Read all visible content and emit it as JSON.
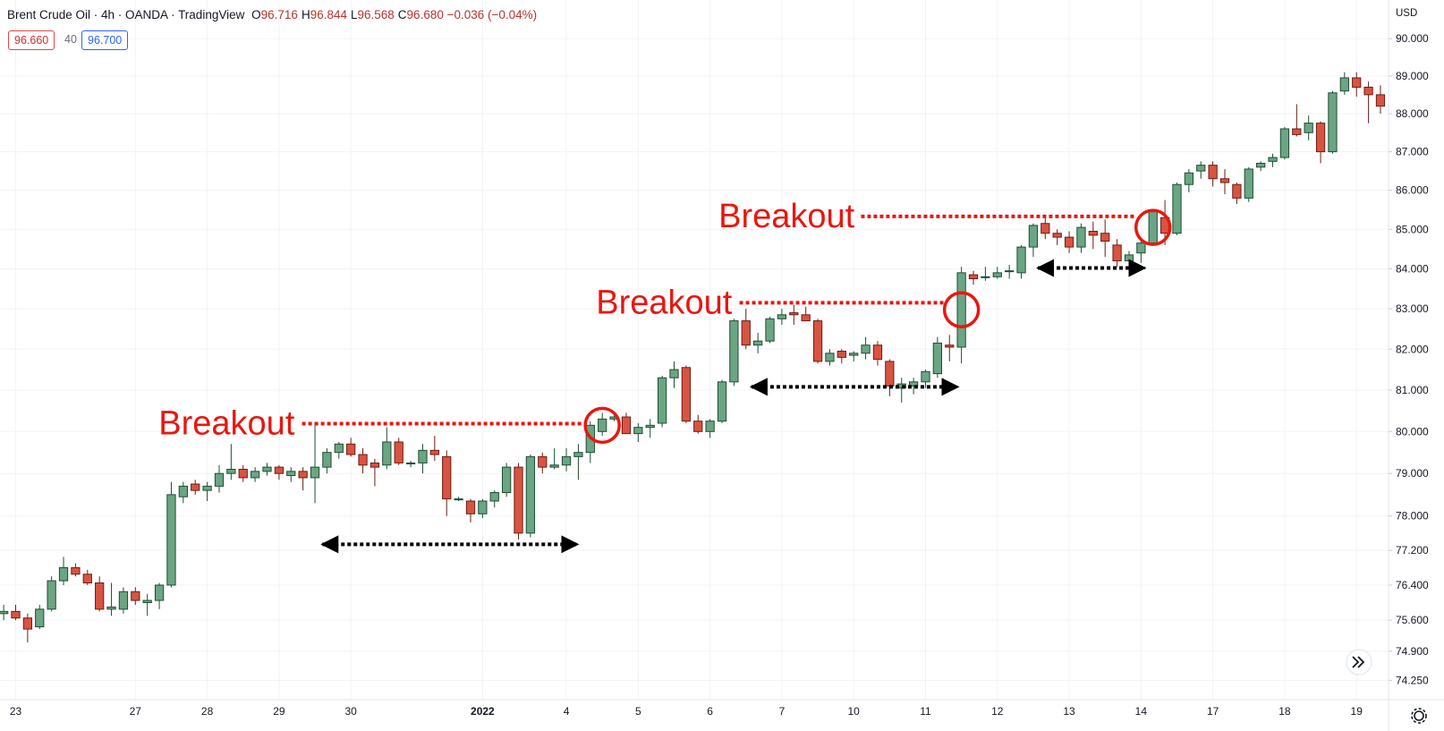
{
  "header": {
    "symbol": "Brent Crude Oil · 4h · OANDA · TradingView",
    "ohlc": [
      {
        "label": "O",
        "value": "96.716"
      },
      {
        "label": "H",
        "value": "96.844"
      },
      {
        "label": "L",
        "value": "96.568"
      },
      {
        "label": "C",
        "value": "96.680"
      }
    ],
    "change": "−0.036 (−0.04%)",
    "bid": "96.660",
    "spread": "40",
    "ask": "96.700"
  },
  "chart_data": {
    "type": "candlestick",
    "currency": "USD",
    "log_scale": true,
    "grid": true,
    "up_color": "#6ba583",
    "down_color": "#d75442",
    "ylim": [
      73.82,
      91.05
    ],
    "yticks": [
      {
        "value": 90,
        "label": "90.000"
      },
      {
        "value": 89,
        "label": "89.000"
      },
      {
        "value": 88,
        "label": "88.000"
      },
      {
        "value": 87,
        "label": "87.000"
      },
      {
        "value": 86,
        "label": "86.000"
      },
      {
        "value": 85,
        "label": "85.000"
      },
      {
        "value": 84,
        "label": "84.000"
      },
      {
        "value": 83,
        "label": "83.000"
      },
      {
        "value": 82,
        "label": "82.000"
      },
      {
        "value": 81,
        "label": "81.000"
      },
      {
        "value": 80,
        "label": "80.000"
      },
      {
        "value": 79,
        "label": "79.000"
      },
      {
        "value": 78,
        "label": "78.000"
      },
      {
        "value": 77.2,
        "label": "77.200"
      },
      {
        "value": 76.4,
        "label": "76.400"
      },
      {
        "value": 75.6,
        "label": "75.600"
      },
      {
        "value": 74.9,
        "label": "74.900"
      },
      {
        "value": 74.25,
        "label": "74.250"
      }
    ],
    "categories": [
      null,
      "23",
      null,
      null,
      null,
      null,
      null,
      null,
      null,
      null,
      null,
      "27",
      null,
      null,
      null,
      null,
      null,
      "28",
      null,
      null,
      null,
      null,
      null,
      "29",
      null,
      null,
      null,
      null,
      null,
      "30",
      null,
      null,
      null,
      null,
      null,
      null,
      null,
      null,
      null,
      null,
      "2022",
      null,
      null,
      null,
      null,
      null,
      null,
      "4",
      null,
      null,
      null,
      null,
      null,
      "5",
      null,
      null,
      null,
      null,
      null,
      "6",
      null,
      null,
      null,
      null,
      null,
      "7",
      null,
      null,
      null,
      null,
      null,
      "10",
      null,
      null,
      null,
      null,
      null,
      "11",
      null,
      null,
      null,
      null,
      null,
      "12",
      null,
      null,
      null,
      null,
      null,
      "13",
      null,
      null,
      null,
      null,
      null,
      "14",
      null,
      null,
      null,
      null,
      null,
      "17",
      null,
      null,
      null,
      null,
      null,
      "18",
      null,
      null,
      null,
      null,
      null,
      "19",
      null,
      null
    ],
    "candles": [
      [
        75.75,
        75.95,
        75.6,
        75.8
      ],
      [
        75.8,
        75.95,
        75.6,
        75.65
      ],
      [
        75.65,
        75.75,
        75.1,
        75.4
      ],
      [
        75.45,
        75.95,
        75.4,
        75.85
      ],
      [
        75.85,
        76.6,
        75.8,
        76.5
      ],
      [
        76.5,
        77.05,
        76.4,
        76.8
      ],
      [
        76.8,
        76.9,
        76.6,
        76.65
      ],
      [
        76.65,
        76.75,
        76.4,
        76.45
      ],
      [
        76.45,
        76.6,
        75.8,
        75.85
      ],
      [
        75.85,
        76.45,
        75.7,
        75.9
      ],
      [
        75.85,
        76.35,
        75.75,
        76.25
      ],
      [
        76.25,
        76.35,
        75.95,
        76.05
      ],
      [
        76.0,
        76.2,
        75.7,
        76.05
      ],
      [
        76.05,
        76.45,
        75.85,
        76.4
      ],
      [
        76.4,
        78.8,
        76.35,
        78.5
      ],
      [
        78.45,
        78.8,
        78.3,
        78.7
      ],
      [
        78.75,
        78.85,
        78.5,
        78.6
      ],
      [
        78.6,
        78.8,
        78.35,
        78.7
      ],
      [
        78.7,
        79.2,
        78.55,
        79.0
      ],
      [
        79.0,
        79.7,
        78.85,
        79.1
      ],
      [
        79.1,
        79.2,
        78.8,
        78.9
      ],
      [
        78.9,
        79.15,
        78.8,
        79.05
      ],
      [
        79.05,
        79.25,
        78.95,
        79.15
      ],
      [
        79.15,
        79.2,
        78.85,
        79.0
      ],
      [
        78.95,
        79.15,
        78.8,
        79.05
      ],
      [
        79.05,
        79.15,
        78.6,
        78.9
      ],
      [
        78.9,
        80.2,
        78.3,
        79.15
      ],
      [
        79.15,
        79.6,
        79.0,
        79.5
      ],
      [
        79.5,
        79.75,
        79.35,
        79.7
      ],
      [
        79.7,
        79.85,
        79.4,
        79.45
      ],
      [
        79.45,
        79.6,
        79.0,
        79.2
      ],
      [
        79.25,
        79.35,
        78.7,
        79.15
      ],
      [
        79.2,
        80.1,
        79.1,
        79.75
      ],
      [
        79.75,
        79.85,
        79.2,
        79.25
      ],
      [
        79.25,
        79.3,
        79.15,
        79.25
      ],
      [
        79.25,
        79.7,
        79.0,
        79.55
      ],
      [
        79.55,
        79.9,
        79.3,
        79.45
      ],
      [
        79.4,
        79.55,
        78.0,
        78.4
      ],
      [
        78.4,
        78.45,
        78.35,
        78.4
      ],
      [
        78.35,
        78.4,
        77.85,
        78.05
      ],
      [
        78.05,
        78.4,
        77.95,
        78.35
      ],
      [
        78.35,
        78.6,
        78.2,
        78.55
      ],
      [
        78.55,
        79.25,
        78.45,
        79.15
      ],
      [
        79.15,
        79.25,
        77.45,
        77.6
      ],
      [
        77.6,
        79.45,
        77.5,
        79.4
      ],
      [
        79.4,
        79.5,
        79.0,
        79.15
      ],
      [
        79.15,
        79.6,
        79.1,
        79.2
      ],
      [
        79.2,
        79.6,
        79.05,
        79.4
      ],
      [
        79.4,
        79.7,
        78.85,
        79.5
      ],
      [
        79.5,
        80.25,
        79.25,
        80.15
      ],
      [
        80.0,
        80.45,
        79.9,
        80.3
      ],
      [
        80.3,
        80.4,
        80.25,
        80.35
      ],
      [
        80.35,
        80.45,
        79.95,
        79.95
      ],
      [
        79.95,
        80.2,
        79.75,
        80.1
      ],
      [
        80.1,
        80.3,
        79.85,
        80.15
      ],
      [
        80.2,
        81.35,
        80.1,
        81.3
      ],
      [
        81.3,
        81.7,
        81.05,
        81.5
      ],
      [
        81.55,
        81.6,
        80.2,
        80.25
      ],
      [
        80.25,
        80.4,
        79.95,
        80.0
      ],
      [
        80.0,
        80.3,
        79.85,
        80.25
      ],
      [
        80.25,
        81.25,
        80.2,
        81.2
      ],
      [
        81.2,
        82.75,
        81.1,
        82.7
      ],
      [
        82.7,
        83.0,
        82.0,
        82.1
      ],
      [
        82.1,
        82.4,
        81.9,
        82.2
      ],
      [
        82.2,
        82.8,
        82.15,
        82.75
      ],
      [
        82.75,
        83.0,
        82.6,
        82.85
      ],
      [
        82.9,
        83.1,
        82.6,
        82.85
      ],
      [
        82.85,
        83.05,
        82.7,
        82.7
      ],
      [
        82.7,
        82.75,
        81.65,
        81.7
      ],
      [
        81.7,
        82.0,
        81.6,
        81.9
      ],
      [
        81.95,
        82.0,
        81.65,
        81.8
      ],
      [
        81.85,
        81.95,
        81.7,
        81.9
      ],
      [
        81.9,
        82.3,
        81.75,
        82.1
      ],
      [
        82.1,
        82.2,
        81.6,
        81.75
      ],
      [
        81.7,
        81.75,
        80.85,
        81.1
      ],
      [
        81.05,
        81.3,
        80.7,
        81.15
      ],
      [
        81.1,
        81.3,
        80.9,
        81.2
      ],
      [
        81.2,
        81.5,
        81.05,
        81.45
      ],
      [
        81.4,
        82.3,
        81.3,
        82.15
      ],
      [
        82.1,
        82.35,
        81.7,
        82.05
      ],
      [
        82.05,
        84.05,
        81.65,
        83.9
      ],
      [
        83.85,
        83.95,
        83.6,
        83.75
      ],
      [
        83.8,
        84.05,
        83.7,
        83.8
      ],
      [
        83.8,
        84.05,
        83.75,
        83.9
      ],
      [
        83.95,
        84.1,
        83.75,
        83.95
      ],
      [
        83.9,
        84.6,
        83.75,
        84.55
      ],
      [
        84.55,
        85.15,
        84.3,
        85.1
      ],
      [
        85.15,
        85.3,
        84.75,
        84.9
      ],
      [
        84.9,
        85.0,
        84.6,
        84.8
      ],
      [
        84.8,
        84.95,
        84.4,
        84.55
      ],
      [
        84.55,
        85.15,
        84.4,
        85.05
      ],
      [
        84.95,
        85.2,
        84.5,
        84.85
      ],
      [
        84.9,
        85.25,
        84.3,
        84.7
      ],
      [
        84.6,
        84.75,
        84.05,
        84.2
      ],
      [
        84.2,
        84.45,
        84.0,
        84.35
      ],
      [
        84.4,
        84.7,
        84.15,
        84.65
      ],
      [
        84.65,
        85.5,
        84.6,
        85.45
      ],
      [
        85.3,
        85.75,
        84.6,
        84.9
      ],
      [
        84.9,
        86.2,
        84.85,
        86.15
      ],
      [
        86.15,
        86.55,
        85.95,
        86.45
      ],
      [
        86.5,
        86.75,
        86.3,
        86.65
      ],
      [
        86.65,
        86.75,
        86.1,
        86.3
      ],
      [
        86.3,
        86.55,
        85.9,
        86.2
      ],
      [
        86.15,
        86.2,
        85.65,
        85.8
      ],
      [
        85.8,
        86.6,
        85.7,
        86.55
      ],
      [
        86.6,
        86.75,
        86.5,
        86.7
      ],
      [
        86.75,
        86.95,
        86.6,
        86.85
      ],
      [
        86.85,
        87.65,
        86.8,
        87.6
      ],
      [
        87.6,
        88.25,
        87.4,
        87.45
      ],
      [
        87.5,
        87.95,
        87.3,
        87.75
      ],
      [
        87.75,
        87.8,
        86.7,
        87.0
      ],
      [
        87.0,
        88.6,
        86.95,
        88.55
      ],
      [
        88.6,
        89.1,
        88.5,
        88.95
      ],
      [
        88.95,
        89.1,
        88.45,
        88.7
      ],
      [
        88.7,
        88.85,
        87.75,
        88.5
      ],
      [
        88.5,
        88.75,
        88.0,
        88.2
      ]
    ],
    "annotations": [
      {
        "text": "Breakout",
        "level": 80.19
      },
      {
        "text": "Breakout",
        "level": 83.15
      },
      {
        "text": "Breakout",
        "level": 85.33
      }
    ]
  }
}
